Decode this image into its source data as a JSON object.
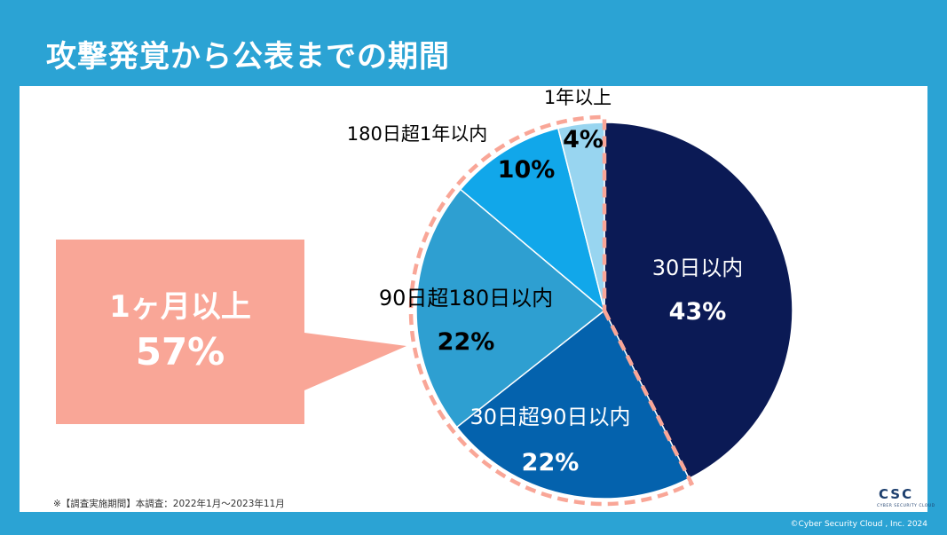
{
  "page": {
    "title": "攻撃発覚から公表までの期間",
    "footnote": "※【調査実施期間】本調査：2022年1月〜2023年11月",
    "logo": "CSC",
    "logo_sub": "CYBER SECURITY CLOUD",
    "copyright": "©Cyber Security Cloud , Inc. 2024"
  },
  "callout": {
    "label": "1ヶ月以上",
    "value": "57%",
    "color": "#f9a697"
  },
  "chart_data": {
    "type": "pie",
    "title": "",
    "start": "12 o'clock, clockwise",
    "highlight": {
      "group": "1ヶ月以上",
      "slices": [
        1,
        2,
        3,
        4
      ],
      "style": "dashed",
      "color": "#f9a697"
    },
    "slices": [
      {
        "label": "30日以内",
        "value": 43,
        "value_label": "43%",
        "color": "#0b1a55"
      },
      {
        "label": "30日超90日以内",
        "value": 22,
        "value_label": "22%",
        "color": "#0462ad"
      },
      {
        "label": "90日超180日以内",
        "value": 22,
        "value_label": "22%",
        "color": "#2e9fd1"
      },
      {
        "label": "180日超1年以内",
        "value": 10,
        "value_label": "10%",
        "color": "#11a7ea"
      },
      {
        "label": "1年以上",
        "value": 4,
        "value_label": "4%",
        "color": "#98d5f0"
      }
    ]
  }
}
